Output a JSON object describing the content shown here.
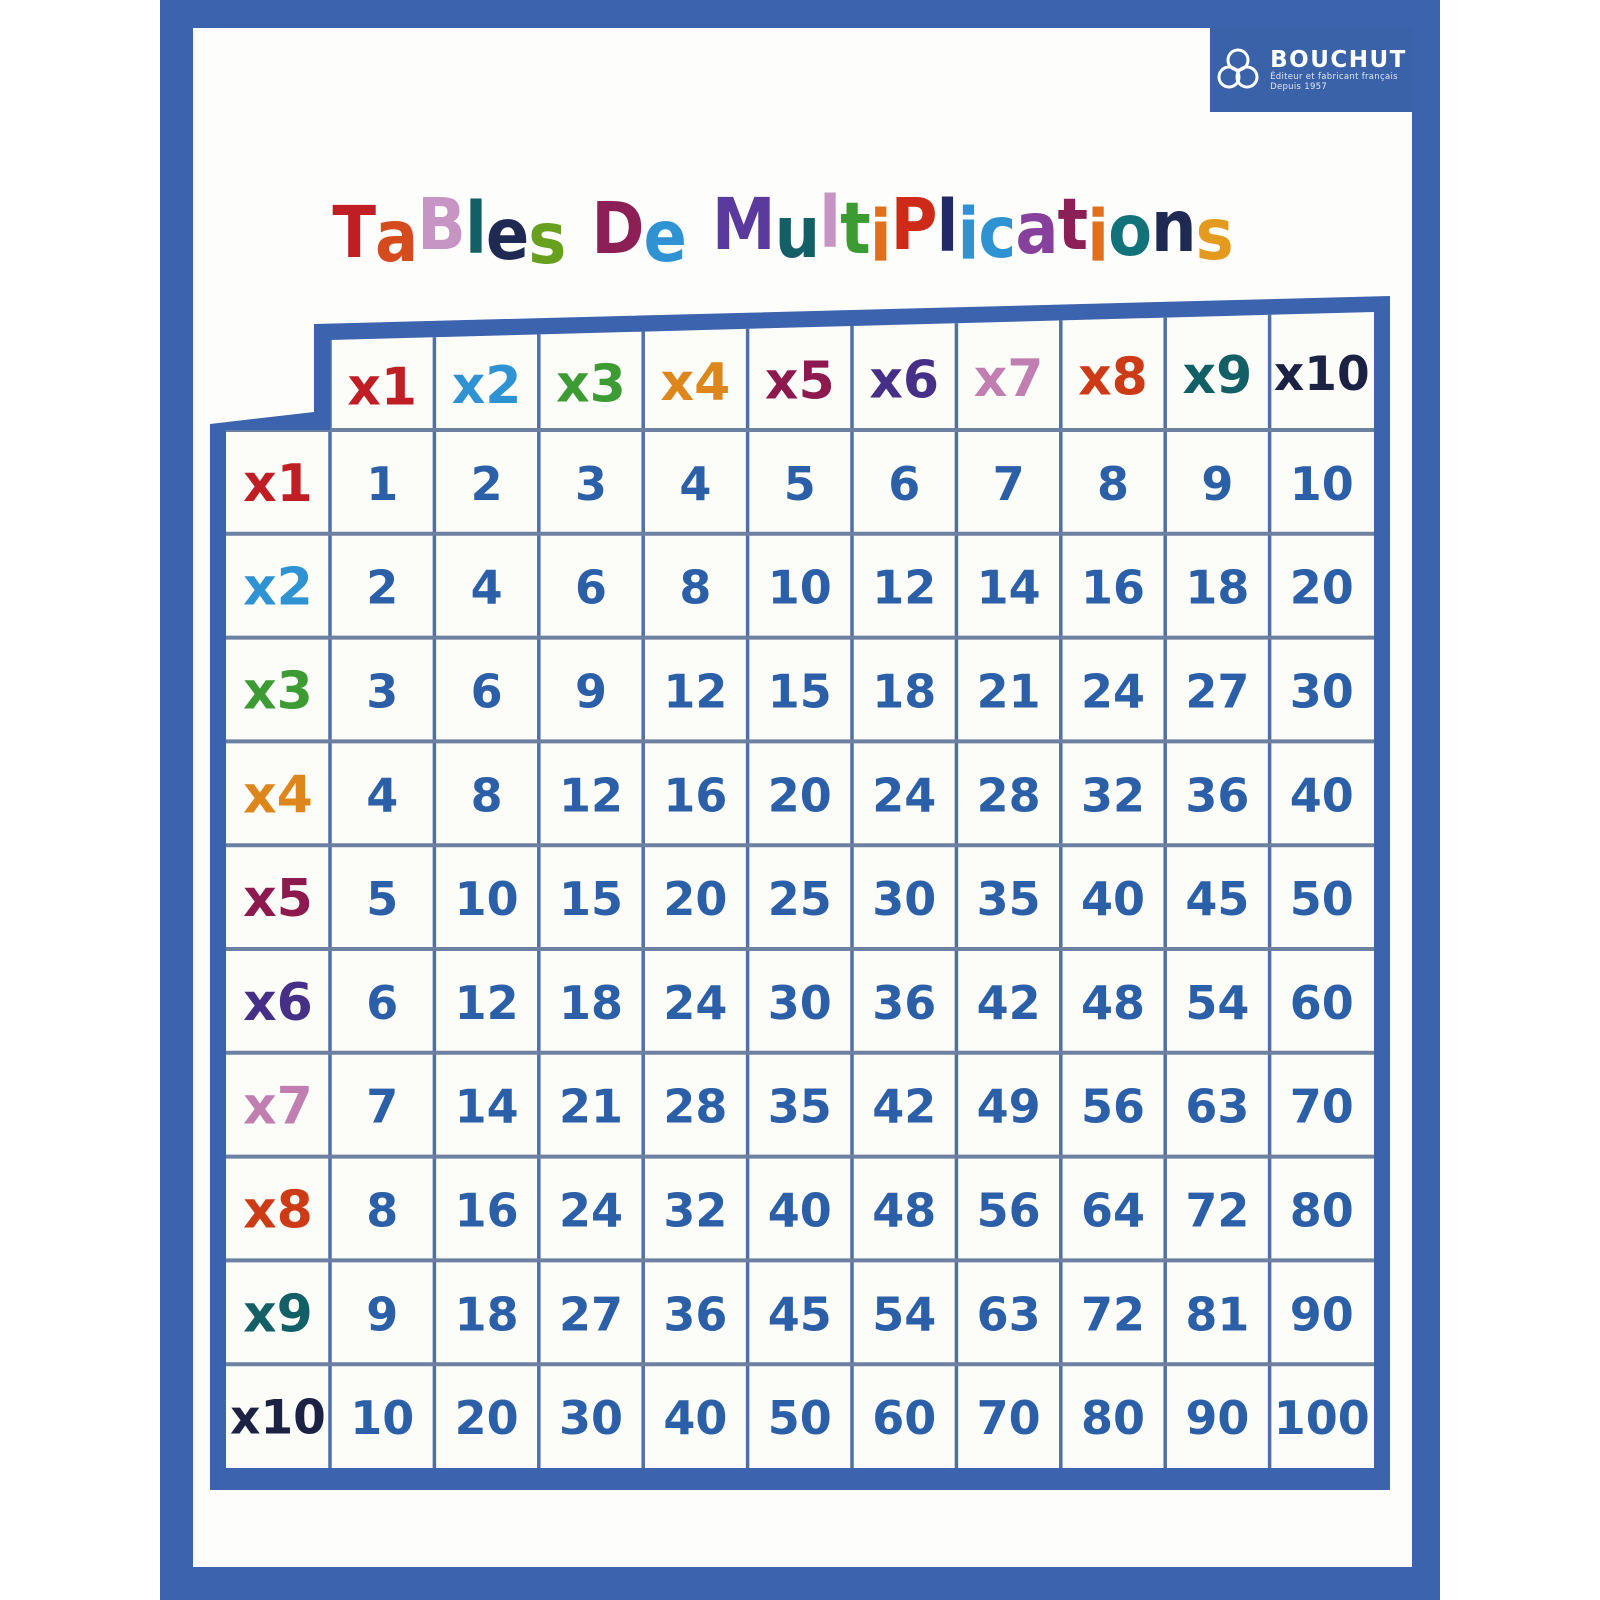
{
  "poster": {
    "title_text": "TaBles De MultiPlications",
    "title_letters": [
      {
        "ch": "T",
        "color": "#bf1e24"
      },
      {
        "ch": "a",
        "color": "#d64b1e"
      },
      {
        "ch": "B",
        "color": "#c795c4"
      },
      {
        "ch": "l",
        "color": "#135f66"
      },
      {
        "ch": "e",
        "color": "#1f2a52"
      },
      {
        "ch": "s",
        "color": "#66a01e"
      },
      {
        "ch": " ",
        "color": null
      },
      {
        "ch": "D",
        "color": "#8c1f56"
      },
      {
        "ch": "e",
        "color": "#2e92d3"
      },
      {
        "ch": " ",
        "color": null
      },
      {
        "ch": "M",
        "color": "#5a3a9c"
      },
      {
        "ch": "u",
        "color": "#135f66"
      },
      {
        "ch": "l",
        "color": "#c795c4"
      },
      {
        "ch": "t",
        "color": "#3d9b33"
      },
      {
        "ch": "i",
        "color": "#e0701c"
      },
      {
        "ch": "P",
        "color": "#cd2a17"
      },
      {
        "ch": "l",
        "color": "#202a66"
      },
      {
        "ch": "i",
        "color": "#2e92d3"
      },
      {
        "ch": "c",
        "color": "#2e92d3"
      },
      {
        "ch": "a",
        "color": "#87409c"
      },
      {
        "ch": "t",
        "color": "#8c1f56"
      },
      {
        "ch": "i",
        "color": "#e0701c"
      },
      {
        "ch": "o",
        "color": "#12727a"
      },
      {
        "ch": "n",
        "color": "#1f2a52"
      },
      {
        "ch": "s",
        "color": "#e49a1e"
      }
    ]
  },
  "logo": {
    "name": "BOUCHUT",
    "tagline_line1": "Éditeur et fabricant français",
    "tagline_line2": "Depuis 1957"
  },
  "table": {
    "col_headers": [
      {
        "label": "x1",
        "color": "#bf1e24"
      },
      {
        "label": "x2",
        "color": "#2e92d3"
      },
      {
        "label": "x3",
        "color": "#3d9b33"
      },
      {
        "label": "x4",
        "color": "#dd861c"
      },
      {
        "label": "x5",
        "color": "#8c1a4e"
      },
      {
        "label": "x6",
        "color": "#463087"
      },
      {
        "label": "x7",
        "color": "#c07fb0"
      },
      {
        "label": "x8",
        "color": "#cc3a16"
      },
      {
        "label": "x9",
        "color": "#135f66"
      },
      {
        "label": "x10",
        "color": "#1c2244"
      }
    ],
    "row_headers": [
      {
        "label": "x1",
        "color": "#bf1e24"
      },
      {
        "label": "x2",
        "color": "#2e92d3"
      },
      {
        "label": "x3",
        "color": "#3d9b33"
      },
      {
        "label": "x4",
        "color": "#dd861c"
      },
      {
        "label": "x5",
        "color": "#8c1a4e"
      },
      {
        "label": "x6",
        "color": "#463087"
      },
      {
        "label": "x7",
        "color": "#c07fb0"
      },
      {
        "label": "x8",
        "color": "#cc3a16"
      },
      {
        "label": "x9",
        "color": "#135f66"
      },
      {
        "label": "x10",
        "color": "#1c2244"
      }
    ],
    "body_values": [
      [
        1,
        2,
        3,
        4,
        5,
        6,
        7,
        8,
        9,
        10
      ],
      [
        2,
        4,
        6,
        8,
        10,
        12,
        14,
        16,
        18,
        20
      ],
      [
        3,
        6,
        9,
        12,
        15,
        18,
        21,
        24,
        27,
        30
      ],
      [
        4,
        8,
        12,
        16,
        20,
        24,
        28,
        32,
        36,
        40
      ],
      [
        5,
        10,
        15,
        20,
        25,
        30,
        35,
        40,
        45,
        50
      ],
      [
        6,
        12,
        18,
        24,
        30,
        36,
        42,
        48,
        54,
        60
      ],
      [
        7,
        14,
        21,
        28,
        35,
        42,
        49,
        56,
        63,
        70
      ],
      [
        8,
        16,
        24,
        32,
        40,
        48,
        56,
        64,
        72,
        80
      ],
      [
        9,
        18,
        27,
        36,
        45,
        54,
        63,
        72,
        81,
        90
      ],
      [
        10,
        20,
        30,
        40,
        50,
        60,
        70,
        80,
        90,
        100
      ]
    ],
    "value_color": "#2b5fa8"
  },
  "colors": {
    "page_bg": "#ffffff",
    "poster_bg": "#fdfdfc",
    "frame": "#3c63ae",
    "grid_vertical": "#4f6fa9",
    "grid_horizontal": "#6d80a2",
    "cell_bg": "#fcfcf9",
    "logo_bg": "#3a62a8",
    "logo_text": "#ffffff"
  }
}
